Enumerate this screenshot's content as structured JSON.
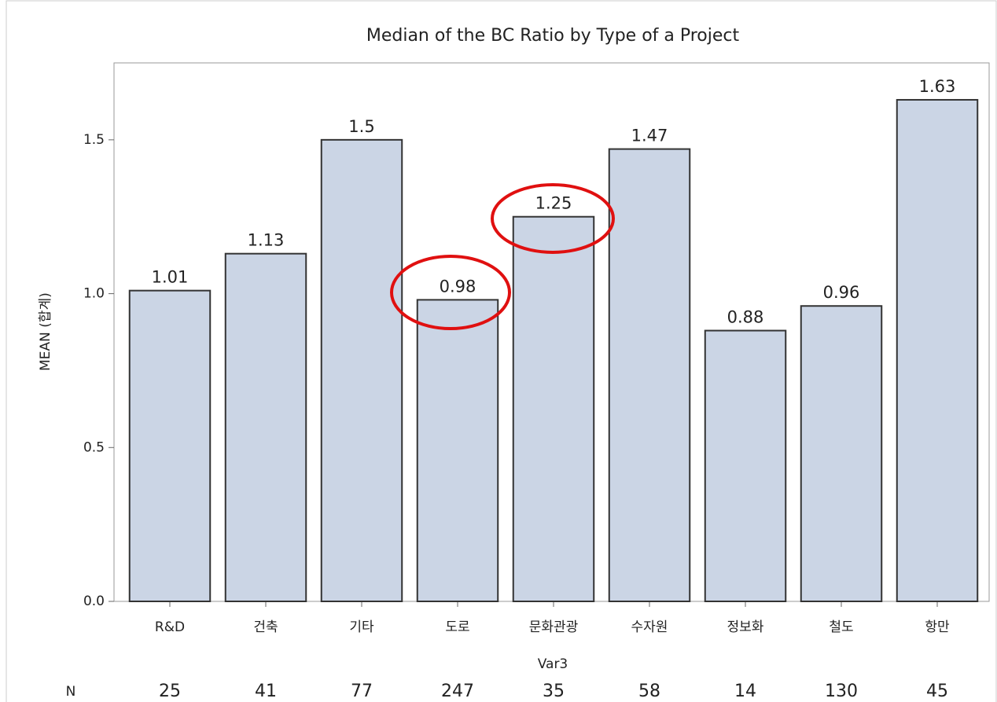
{
  "chart_data": {
    "type": "bar",
    "title": "Median of the BC Ratio by Type of a Project",
    "x_label": "Var3",
    "y_label": "MEAN (합계)",
    "categories": [
      "R&D",
      "건축",
      "기타",
      "도로",
      "문화관광",
      "수자원",
      "정보화",
      "철도",
      "항만"
    ],
    "values": [
      1.01,
      1.13,
      1.5,
      0.98,
      1.25,
      1.47,
      0.88,
      0.96,
      1.63
    ],
    "color": "#cbd5e5",
    "ylim": [
      0,
      1.75
    ],
    "yticks": [
      {
        "value": 0,
        "label": "0.0"
      },
      0.5,
      {
        "value": 1,
        "label": "1.0"
      },
      1.5
    ],
    "n_label": "N",
    "n_values": [
      25,
      41,
      77,
      247,
      35,
      58,
      14,
      130,
      45
    ]
  }
}
